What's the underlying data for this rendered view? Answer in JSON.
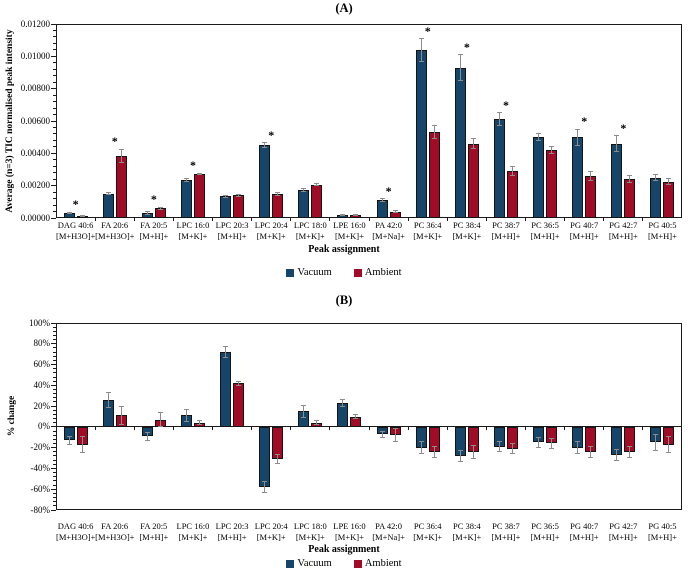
{
  "figure_title_a": "(A)",
  "figure_title_b": "(B)",
  "colors": {
    "vacuum": "#16456a",
    "ambient": "#a00b26",
    "error_bar": "#8c8c8c",
    "axis": "#1a1a1a"
  },
  "chart_data": [
    {
      "type": "bar",
      "title": "(A)",
      "xlabel": "Peak assignment",
      "ylabel": "Average (n=3) TIC normalised peak intensity",
      "ylim": [
        0,
        0.012
      ],
      "ytick_major_step": 0.002,
      "ytick_minor_step": 0.0004,
      "grid": false,
      "legend_position": "bottom",
      "yticks": [
        {
          "value": 0.012,
          "label": "0.01200"
        },
        {
          "value": 0.01,
          "label": "0.01000"
        },
        {
          "value": 0.008,
          "label": "0.00800"
        },
        {
          "value": 0.006,
          "label": "0.00600"
        },
        {
          "value": 0.004,
          "label": "0.00400"
        },
        {
          "value": 0.002,
          "label": "0.00200"
        },
        {
          "value": 0.0,
          "label": "0.00000"
        }
      ],
      "categories": [
        {
          "line1": "DAG 40:6",
          "line2": "[M+H3O]+"
        },
        {
          "line1": "FA 20:6",
          "line2": "[M+H3O]+"
        },
        {
          "line1": "FA 20:5",
          "line2": "[M+H]+"
        },
        {
          "line1": "LPC 16:0",
          "line2": "[M+K]+"
        },
        {
          "line1": "LPC 20:3",
          "line2": "[M+H]+"
        },
        {
          "line1": "LPC 20:4",
          "line2": "[M+K]+"
        },
        {
          "line1": "LPC 18:0",
          "line2": "[M+K]+"
        },
        {
          "line1": "LPE 16:0",
          "line2": "[M+K]+"
        },
        {
          "line1": "PA 42:0",
          "line2": "[M+Na]+"
        },
        {
          "line1": "PC 36:4",
          "line2": "[M+K]+"
        },
        {
          "line1": "PC 38:4",
          "line2": "[M+K]+"
        },
        {
          "line1": "PC 38:7",
          "line2": "[M+H]+"
        },
        {
          "line1": "PC 36:5",
          "line2": "[M+H]+"
        },
        {
          "line1": "PG 40:7",
          "line2": "[M+H]+"
        },
        {
          "line1": "PG 42:7",
          "line2": "[M+H]+"
        },
        {
          "line1": "PG 40:5",
          "line2": "[M+H]+"
        }
      ],
      "series": [
        {
          "name": "Vacuum",
          "color": "#16456a",
          "values": [
            0.0003,
            0.0015,
            0.00032,
            0.00235,
            0.00135,
            0.0045,
            0.00175,
            0.0002,
            0.0011,
            0.0104,
            0.0093,
            0.0061,
            0.005,
            0.005,
            0.0046,
            0.0025
          ],
          "errors": [
            5e-05,
            6e-05,
            8e-05,
            0.0001,
            6e-05,
            0.00015,
            0.0001,
            3e-05,
            8e-05,
            0.0007,
            0.0008,
            0.0004,
            0.0002,
            0.0005,
            0.0005,
            0.0002
          ]
        },
        {
          "name": "Ambient",
          "color": "#a00b26",
          "values": [
            0.00012,
            0.00385,
            0.0006,
            0.00272,
            0.0014,
            0.0015,
            0.00205,
            0.0002,
            0.0004,
            0.0053,
            0.0046,
            0.0029,
            0.0042,
            0.0026,
            0.0024,
            0.00225
          ],
          "errors": [
            3e-05,
            0.0004,
            6e-05,
            6e-05,
            6e-05,
            0.0001,
            6e-05,
            3e-05,
            5e-05,
            0.0004,
            0.0003,
            0.0003,
            0.0002,
            0.0003,
            0.0002,
            0.0002
          ]
        }
      ],
      "significant": [
        true,
        true,
        true,
        true,
        false,
        true,
        false,
        false,
        true,
        true,
        true,
        true,
        false,
        true,
        true,
        false
      ],
      "significance_marker": "*"
    },
    {
      "type": "bar",
      "title": "(B)",
      "xlabel": "Peak assignment",
      "ylabel": "% change",
      "ylim": [
        -80,
        100
      ],
      "ytick_major_step": 20,
      "ytick_minor_step": 4,
      "grid": false,
      "legend_position": "bottom",
      "yticks": [
        {
          "value": 100,
          "label": "100%"
        },
        {
          "value": 80,
          "label": "80%"
        },
        {
          "value": 60,
          "label": "60%"
        },
        {
          "value": 40,
          "label": "40%"
        },
        {
          "value": 20,
          "label": "20%"
        },
        {
          "value": 0,
          "label": "0%"
        },
        {
          "value": -20,
          "label": "-20%"
        },
        {
          "value": -40,
          "label": "-40%"
        },
        {
          "value": -60,
          "label": "-60%"
        },
        {
          "value": -80,
          "label": "-80%"
        }
      ],
      "categories": [
        {
          "line1": "DAG 40:6",
          "line2": "[M+H3O]+"
        },
        {
          "line1": "FA 20:6",
          "line2": "[M+H3O]+"
        },
        {
          "line1": "FA 20:5",
          "line2": "[M+H]+"
        },
        {
          "line1": "LPC 16:0",
          "line2": "[M+K]+"
        },
        {
          "line1": "LPC 20:3",
          "line2": "[M+H]+"
        },
        {
          "line1": "LPC 20:4",
          "line2": "[M+K]+"
        },
        {
          "line1": "LPC 18:0",
          "line2": "[M+K]+"
        },
        {
          "line1": "LPE 16:0",
          "line2": "[M+K]+"
        },
        {
          "line1": "PA 42:0",
          "line2": "[M+Na]+"
        },
        {
          "line1": "PC 36:4",
          "line2": "[M+K]+"
        },
        {
          "line1": "PC 38:4",
          "line2": "[M+K]+"
        },
        {
          "line1": "PC 38:7",
          "line2": "[M+H]+"
        },
        {
          "line1": "PC 36:5",
          "line2": "[M+H]+"
        },
        {
          "line1": "PG 40:7",
          "line2": "[M+H]+"
        },
        {
          "line1": "PG 42:7",
          "line2": "[M+H]+"
        },
        {
          "line1": "PG 40:5",
          "line2": "[M+H]+"
        }
      ],
      "series": [
        {
          "name": "Vacuum",
          "color": "#16456a",
          "values": [
            -13,
            26,
            -9,
            11,
            72,
            -58,
            15,
            23,
            -7,
            -20,
            -28,
            -19,
            -15,
            -20,
            -27,
            -15
          ],
          "errors": [
            4,
            7,
            4,
            6,
            5,
            5,
            6,
            3,
            3,
            6,
            5,
            5,
            5,
            6,
            5,
            8
          ]
        },
        {
          "name": "Ambient",
          "color": "#a00b26",
          "values": [
            -17,
            11,
            7,
            4,
            42,
            -31,
            4,
            10,
            -8,
            -24,
            -24,
            -21,
            -16,
            -24,
            -24,
            -17
          ],
          "errors": [
            8,
            9,
            7,
            2,
            2,
            4,
            2,
            2,
            6,
            5,
            6,
            5,
            5,
            5,
            5,
            8
          ]
        }
      ],
      "significant": [
        false,
        false,
        false,
        false,
        false,
        false,
        false,
        false,
        false,
        false,
        false,
        false,
        false,
        false,
        false,
        false
      ],
      "significance_marker": "*"
    }
  ]
}
